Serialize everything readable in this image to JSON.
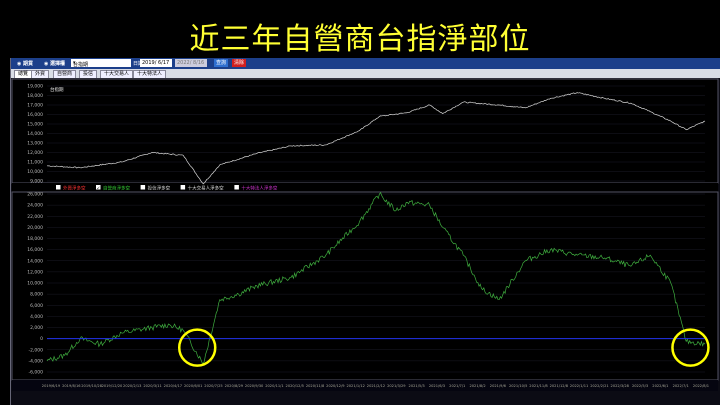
{
  "title": "近三年自營商台指淨部位",
  "toolbar": {
    "radio_1": "期貨",
    "radio_2": "選擇權",
    "product": "台指期",
    "date_label": "日期",
    "start_date": "2019/ 6/17",
    "end_date": "2022/ 8/16",
    "query_button": "查詢",
    "clear_button": "清除"
  },
  "tabs": [
    "總覽",
    "外資",
    "自營商",
    "投信",
    "十大交易人",
    "十大特法人"
  ],
  "colors": {
    "price_line": "#d8d8d8",
    "dealer_line": "#3fae3f",
    "zero_line": "#2233ee",
    "annotation": "#ffff00",
    "title": "#ffff33"
  },
  "chart_data": [
    {
      "type": "line",
      "title": "台指期",
      "ylim": [
        9000,
        19000
      ],
      "yticks": [
        "9,000",
        "10,000",
        "11,000",
        "12,000",
        "13,000",
        "14,000",
        "15,000",
        "16,000",
        "17,000",
        "18,000",
        "19,000"
      ],
      "grid": true,
      "x": [
        "2019/6/19",
        "2019/8/16",
        "2019/10/28",
        "2019/12/20",
        "2020/2/13",
        "2020/3/19",
        "2020/4/17",
        "2020/6/21",
        "2020/8/20",
        "2020/10/20",
        "2020/12/18",
        "2021/1/22",
        "2021/3/12",
        "2021/4/20",
        "2021/5/13",
        "2021/6/18",
        "2021/8/20",
        "2021/10/5",
        "2021/11/18",
        "2022/1/4",
        "2022/2/21",
        "2022/4/8",
        "2022/5/12",
        "2022/6/17",
        "2022/7/14",
        "2022/8/16"
      ],
      "values": [
        10600,
        10400,
        11000,
        12000,
        11700,
        8700,
        10700,
        11900,
        12700,
        12800,
        14300,
        15800,
        16200,
        17000,
        16100,
        17300,
        17000,
        16700,
        17700,
        18300,
        17700,
        17200,
        16300,
        15300,
        14400,
        15300
      ]
    },
    {
      "type": "line",
      "legend": [
        {
          "label": "外資淨多空",
          "checked": false,
          "color": "#ff3333"
        },
        {
          "label": "自營商淨多空",
          "checked": true,
          "color": "#33cc33"
        },
        {
          "label": "投信淨多空",
          "checked": false,
          "color": "#dddddd"
        },
        {
          "label": "十大交易人淨多空",
          "checked": false,
          "color": "#dddddd"
        },
        {
          "label": "十大特法人淨多空",
          "checked": false,
          "color": "#cc33cc"
        }
      ],
      "ylim": [
        -6000,
        26000
      ],
      "yticks": [
        "-6,000",
        "-4,000",
        "-2,000",
        "0",
        "2,000",
        "4,000",
        "6,000",
        "8,000",
        "10,000",
        "12,000",
        "14,000",
        "16,000",
        "18,000",
        "20,000",
        "22,000",
        "24,000",
        "26,000"
      ],
      "grid": true,
      "xtick_labels": [
        "2019/6/19",
        "2019/8/16",
        "2019/10/28",
        "2019/12/20",
        "2020/2/13",
        "2020/3/11",
        "2020/4/17",
        "2020/6/01",
        "2020/7/25",
        "2020/8/29",
        "2020/9/30",
        "2020/11/1",
        "2020/12/5",
        "2020/11/8",
        "2020/12/9",
        "2021/1/12",
        "2021/2/12",
        "2021/3/29",
        "2021/5/3",
        "2021/6/3",
        "2021/7/1",
        "2021/8/2",
        "2021/9/6",
        "2021/10/5",
        "2021/11/8",
        "2021/12/8",
        "2022/1/11",
        "2022/2/21",
        "2022/3/28",
        "2022/5/3",
        "2022/6/1",
        "2022/7/1",
        "2022/8/1"
      ],
      "x": [
        "2019/6/19",
        "2019/7/20",
        "2019/8/16",
        "2019/9/20",
        "2019/10/28",
        "2019/12/20",
        "2020/1/20",
        "2020/2/13",
        "2020/3/19",
        "2020/4/17",
        "2020/5/20",
        "2020/6/21",
        "2020/8/20",
        "2020/10/20",
        "2020/12/18",
        "2021/1/22",
        "2021/2/20",
        "2021/3/12",
        "2021/4/20",
        "2021/5/13",
        "2021/6/18",
        "2021/7/20",
        "2021/8/20",
        "2021/10/5",
        "2021/11/18",
        "2022/1/4",
        "2022/2/21",
        "2022/4/8",
        "2022/5/12",
        "2022/6/17",
        "2022/7/14",
        "2022/8/16"
      ],
      "values": [
        -4000,
        -3000,
        0,
        -1000,
        1000,
        2000,
        2500,
        1500,
        -4500,
        7000,
        8000,
        9500,
        11000,
        15000,
        21000,
        26000,
        23000,
        24500,
        24000,
        20000,
        15000,
        9000,
        7000,
        14000,
        16000,
        15000,
        14500,
        13000,
        15000,
        10000,
        -500,
        -1000
      ],
      "zero_line": true,
      "annotations": [
        {
          "shape": "circle",
          "at": "2020/3/19"
        },
        {
          "shape": "circle",
          "at": "2022/8/1"
        }
      ]
    }
  ]
}
